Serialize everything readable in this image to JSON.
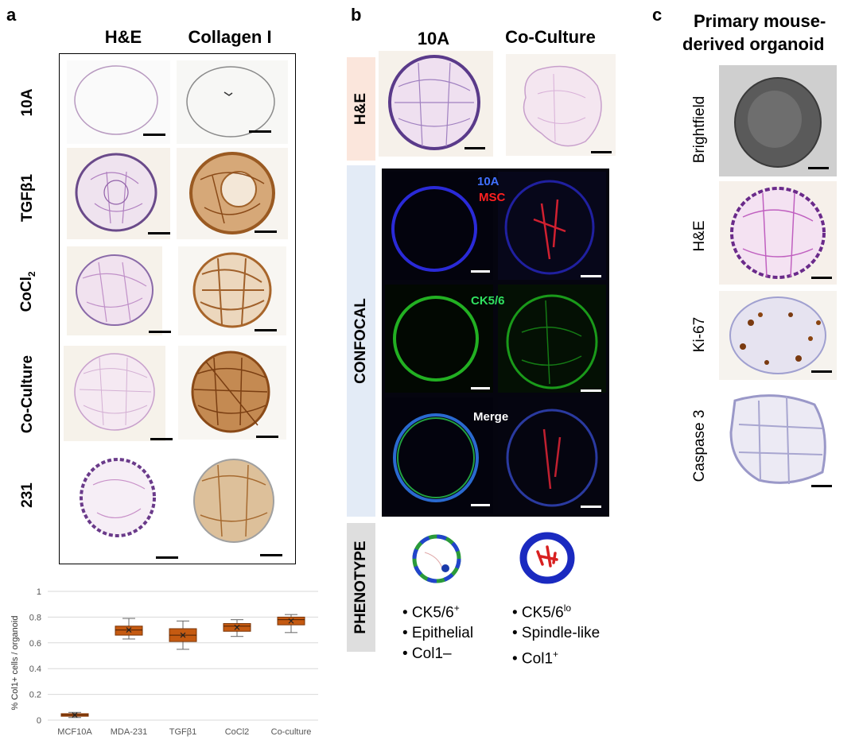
{
  "panel_a": {
    "letter": "a",
    "col_headers": [
      "H&E",
      "Collagen I"
    ],
    "rows": [
      {
        "label": "10A"
      },
      {
        "label_main": "TGFβ1"
      },
      {
        "label_main": "CoCl",
        "label_sub": "2"
      },
      {
        "label": "Co-Culture"
      },
      {
        "label": "231"
      }
    ]
  },
  "panel_b": {
    "letter": "b",
    "col_headers": [
      "10A",
      "Co-Culture"
    ],
    "side_labels": {
      "he": "H&E",
      "confocal": "CONFOCAL",
      "phenotype": "PHENOTYPE"
    },
    "confocal_labels": {
      "blue": "10A",
      "red": "MSC",
      "green": "CK5/6",
      "merge": "Merge"
    },
    "phenotype_left": [
      {
        "main": "• CK5/6",
        "sup": "+"
      },
      {
        "main": "• Epithelial"
      },
      {
        "main": "• Col1",
        "tail": "–"
      }
    ],
    "phenotype_right": [
      {
        "main": "• CK5/6",
        "sup": "lo"
      },
      {
        "main": "• Spindle-like"
      },
      {
        "main": "• Col1",
        "sup": "+"
      }
    ]
  },
  "panel_c": {
    "letter": "c",
    "title_lines": [
      "Primary mouse-",
      "derived organoid"
    ],
    "rows": [
      "Brightfield",
      "H&E",
      "Ki-67",
      "Caspase 3"
    ]
  },
  "chart_data": {
    "type": "box",
    "ylabel": "% Col1+ cells / organoid",
    "ylim": [
      0,
      1
    ],
    "yticks": [
      0,
      0.2,
      0.4,
      0.6,
      0.8,
      1
    ],
    "categories": [
      "MCF10A",
      "MDA-231",
      "TGFβ1",
      "CoCl2",
      "Co-culture"
    ],
    "boxes": [
      {
        "min": 0.02,
        "q1": 0.03,
        "median": 0.04,
        "q3": 0.05,
        "max": 0.06,
        "mean": 0.04
      },
      {
        "min": 0.63,
        "q1": 0.66,
        "median": 0.7,
        "q3": 0.73,
        "max": 0.79,
        "mean": 0.7
      },
      {
        "min": 0.55,
        "q1": 0.61,
        "median": 0.66,
        "q3": 0.71,
        "max": 0.77,
        "mean": 0.66
      },
      {
        "min": 0.65,
        "q1": 0.69,
        "median": 0.73,
        "q3": 0.75,
        "max": 0.78,
        "mean": 0.72
      },
      {
        "min": 0.68,
        "q1": 0.74,
        "median": 0.78,
        "q3": 0.8,
        "max": 0.82,
        "mean": 0.77
      }
    ],
    "box_color": "#c55a11",
    "grid": true
  }
}
